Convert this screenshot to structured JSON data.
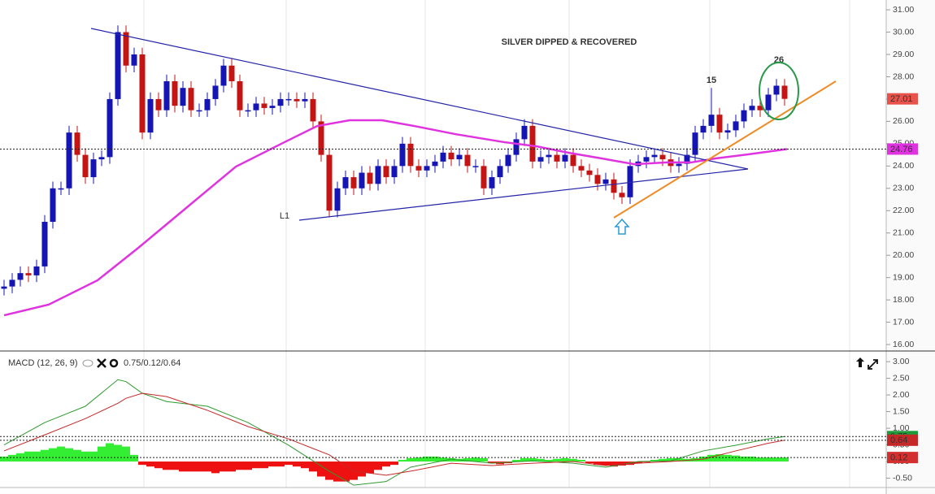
{
  "chart_data": [
    {
      "type": "candlestick",
      "title": "SILVER DIPPED & RECOVERED",
      "annotations": [
        {
          "text": "15"
        },
        {
          "text": "26"
        },
        {
          "text": "L1"
        }
      ],
      "candles": {
        "open": [
          18.5,
          18.6,
          18.9,
          19.2,
          19.1,
          19.5,
          21.5,
          23.0,
          23.0,
          25.5,
          24.5,
          23.5,
          24.3,
          24.4,
          27.0,
          30.0,
          28.5,
          29.0,
          25.5,
          27.0,
          26.5,
          27.8,
          26.7,
          27.5,
          26.5,
          26.5,
          27.0,
          27.6,
          28.5,
          27.8,
          26.5,
          26.5,
          26.8,
          26.6,
          26.7,
          27.0,
          27.0,
          26.9,
          27.0,
          26.0,
          24.5,
          22.0,
          23.0,
          23.5,
          23.0,
          23.7,
          23.2,
          24.0,
          23.5,
          24.0,
          25.0,
          24.0,
          23.8,
          24.0,
          24.2,
          24.6,
          24.3,
          24.5,
          24.0,
          24.0,
          23.0,
          23.5,
          24.0,
          24.5,
          25.2,
          25.8,
          24.2,
          24.4,
          24.5,
          24.2,
          24.5,
          24.0,
          23.8,
          23.6,
          23.2,
          23.4,
          22.8,
          22.6,
          24.0,
          24.2,
          24.4,
          24.5,
          24.3,
          24.0,
          24.1,
          24.5,
          25.5,
          25.8,
          26.3,
          25.5,
          25.6,
          26.0,
          26.5,
          26.7,
          26.5,
          27.2,
          27.6
        ],
        "high": [
          18.9,
          19.2,
          19.5,
          19.5,
          19.8,
          21.8,
          23.3,
          23.3,
          25.8,
          25.8,
          24.8,
          24.6,
          24.7,
          27.3,
          30.3,
          30.3,
          29.3,
          29.3,
          27.3,
          27.3,
          28.1,
          28.1,
          27.8,
          27.8,
          26.8,
          27.3,
          27.9,
          28.8,
          28.8,
          28.1,
          26.8,
          27.1,
          27.1,
          27.0,
          27.3,
          27.3,
          27.3,
          27.3,
          27.3,
          26.3,
          24.8,
          23.3,
          23.8,
          23.8,
          24.0,
          24.0,
          24.3,
          24.3,
          24.3,
          25.3,
          25.3,
          24.3,
          24.3,
          24.5,
          24.9,
          24.9,
          24.8,
          24.8,
          24.3,
          24.3,
          23.8,
          24.3,
          24.8,
          25.5,
          26.1,
          26.1,
          24.7,
          24.8,
          24.8,
          24.8,
          24.8,
          24.3,
          24.1,
          23.9,
          23.7,
          23.7,
          23.1,
          24.3,
          24.5,
          24.7,
          24.8,
          24.8,
          24.6,
          24.4,
          24.8,
          25.8,
          26.1,
          27.5,
          26.6,
          25.9,
          26.3,
          26.8,
          27.0,
          27.0,
          27.5,
          27.9,
          27.9
        ],
        "low": [
          18.2,
          18.3,
          18.6,
          18.8,
          18.8,
          19.2,
          21.2,
          22.7,
          22.7,
          24.2,
          23.2,
          23.2,
          24.0,
          24.1,
          26.7,
          28.2,
          28.2,
          25.2,
          25.2,
          26.2,
          26.2,
          26.4,
          26.4,
          26.2,
          26.2,
          26.2,
          26.7,
          27.3,
          27.5,
          26.2,
          26.2,
          26.2,
          26.3,
          26.3,
          26.4,
          26.7,
          26.6,
          26.6,
          25.7,
          24.2,
          21.7,
          21.7,
          22.7,
          22.7,
          22.7,
          22.9,
          22.9,
          23.2,
          23.2,
          23.7,
          23.7,
          23.5,
          23.5,
          23.7,
          23.9,
          24.0,
          24.0,
          23.7,
          23.7,
          22.7,
          22.7,
          23.2,
          23.7,
          24.2,
          24.9,
          23.9,
          23.9,
          24.1,
          23.9,
          23.9,
          23.7,
          23.5,
          23.3,
          22.9,
          22.9,
          22.5,
          22.3,
          22.3,
          23.7,
          23.9,
          24.1,
          24.0,
          23.7,
          23.7,
          23.8,
          24.2,
          25.2,
          25.5,
          25.2,
          25.2,
          25.3,
          25.7,
          26.2,
          26.2,
          26.2,
          26.9,
          26.7
        ],
        "close": [
          18.6,
          18.9,
          19.2,
          19.1,
          19.5,
          21.5,
          23.0,
          23.0,
          25.5,
          24.5,
          23.5,
          24.3,
          24.4,
          27.0,
          30.0,
          28.5,
          29.0,
          25.5,
          27.0,
          26.5,
          27.8,
          26.7,
          27.5,
          26.5,
          26.5,
          27.0,
          27.6,
          28.5,
          27.8,
          26.5,
          26.5,
          26.8,
          26.6,
          26.7,
          27.0,
          27.0,
          26.9,
          27.0,
          26.0,
          24.5,
          22.0,
          23.0,
          23.5,
          23.0,
          23.7,
          23.2,
          24.0,
          23.5,
          24.0,
          25.0,
          24.0,
          23.8,
          24.0,
          24.2,
          24.6,
          24.3,
          24.5,
          24.0,
          24.0,
          23.0,
          23.5,
          24.0,
          24.5,
          25.2,
          25.8,
          24.2,
          24.4,
          24.5,
          24.2,
          24.5,
          24.0,
          23.8,
          23.6,
          23.2,
          23.4,
          22.8,
          22.6,
          24.0,
          24.2,
          24.4,
          24.5,
          24.3,
          24.0,
          24.1,
          24.5,
          25.5,
          25.8,
          26.3,
          25.5,
          25.6,
          26.0,
          26.5,
          26.7,
          26.5,
          27.2,
          27.6,
          27.01
        ],
        "up_color": "#1515b5",
        "down_color": "#c41414"
      },
      "ma": {
        "color": "#e033e0",
        "x": [
          0,
          5.5,
          11.5,
          16.5,
          22.5,
          28.5,
          34.5,
          38.5,
          42.5,
          46.5,
          50.5,
          55.5,
          61.5,
          65.5,
          69.5,
          73.5,
          77.5,
          81.5,
          84.5,
          87.5,
          91.5,
          96.3
        ],
        "values": [
          17.31,
          17.79,
          18.88,
          20.33,
          22.15,
          23.97,
          25.07,
          25.79,
          26.05,
          26.05,
          25.79,
          25.43,
          25.07,
          24.88,
          24.59,
          24.34,
          24.08,
          24.16,
          24.16,
          24.34,
          24.52,
          24.76
        ]
      },
      "ylim": [
        15.71,
        31.44
      ],
      "yticks": [
        {
          "value": 16,
          "label": "16.00"
        },
        {
          "value": 17,
          "label": "17.00"
        },
        {
          "value": 18,
          "label": "18.00"
        },
        {
          "value": 19,
          "label": "19.00"
        },
        {
          "value": 20,
          "label": "20.00"
        },
        {
          "value": 21,
          "label": "21.00"
        },
        {
          "value": 22,
          "label": "22.00"
        },
        {
          "value": 23,
          "label": "23.00"
        },
        {
          "value": 24,
          "label": "24.00"
        },
        {
          "value": 25,
          "label": "25.00"
        },
        {
          "value": 26,
          "label": "26.00"
        },
        {
          "value": 27,
          "label": "27.00"
        },
        {
          "value": 28,
          "label": "28.00"
        },
        {
          "value": 29,
          "label": "29.00"
        },
        {
          "value": 30,
          "label": "30.00"
        },
        {
          "value": 31,
          "label": "31.00"
        }
      ]
    },
    {
      "type": "macd",
      "title": "MACD (12, 26, 9)",
      "readout": "0.75/0.12/0.64",
      "x": [
        0,
        5,
        10,
        14,
        15,
        17,
        20,
        25,
        30,
        35,
        40,
        43,
        47,
        50,
        55,
        60,
        65,
        70,
        74,
        78,
        82,
        86,
        90,
        94,
        96
      ],
      "macd": {
        "color": "#2e9a2e",
        "values": [
          0.5,
          1.17,
          1.66,
          2.46,
          2.4,
          2.05,
          1.8,
          1.66,
          1.17,
          0.49,
          -0.29,
          -0.71,
          -0.6,
          -0.17,
          0.07,
          -0.05,
          0.02,
          -0.05,
          -0.17,
          0,
          0.02,
          0.32,
          0.49,
          0.68,
          0.75
        ]
      },
      "signal": {
        "color": "#c62828",
        "values": [
          0.32,
          0.8,
          1.29,
          1.75,
          1.9,
          2.05,
          1.95,
          1.54,
          1.05,
          0.68,
          0.2,
          -0.29,
          -0.41,
          -0.29,
          -0.05,
          -0.12,
          -0.05,
          0,
          -0.12,
          -0.05,
          0,
          0.07,
          0.32,
          0.55,
          0.64
        ]
      },
      "histogram": {
        "pos_color": "#33ee33",
        "neg_color": "#ee1111",
        "values": [
          0.15,
          0.2,
          0.25,
          0.3,
          0.3,
          0.35,
          0.4,
          0.45,
          0.4,
          0.35,
          0.3,
          0.3,
          0.45,
          0.55,
          0.5,
          0.45,
          0.2,
          -0.1,
          -0.15,
          -0.2,
          -0.25,
          -0.25,
          -0.3,
          -0.3,
          -0.3,
          -0.3,
          -0.35,
          -0.3,
          -0.3,
          -0.25,
          -0.25,
          -0.2,
          -0.2,
          -0.15,
          -0.15,
          -0.1,
          -0.15,
          -0.2,
          -0.3,
          -0.45,
          -0.55,
          -0.6,
          -0.6,
          -0.55,
          -0.45,
          -0.35,
          -0.25,
          -0.15,
          -0.1,
          0.05,
          0.1,
          0.12,
          0.15,
          0.15,
          0.12,
          0.1,
          0.08,
          0.1,
          0.12,
          0.1,
          -0.05,
          -0.08,
          -0.05,
          0.05,
          0.1,
          0.1,
          0.08,
          0.05,
          0.08,
          0.1,
          0.08,
          0.05,
          -0.05,
          -0.1,
          -0.12,
          -0.15,
          -0.12,
          -0.1,
          -0.05,
          -0.02,
          0.05,
          0.08,
          0.1,
          0.1,
          0.08,
          0.1,
          0.15,
          0.2,
          0.22,
          0.2,
          0.18,
          0.15,
          0.15,
          0.12,
          0.12,
          0.12,
          0.12
        ]
      },
      "ylim": [
        -0.78,
        3.32
      ],
      "yticks": [
        {
          "value": -0.5,
          "label": "-0.50"
        },
        {
          "value": 0,
          "label": "0.00"
        },
        {
          "value": 0.5,
          "label": "0.50"
        },
        {
          "value": 1,
          "label": "1.00"
        },
        {
          "value": 1.5,
          "label": "1.50"
        },
        {
          "value": 2,
          "label": "2.00"
        },
        {
          "value": 2.5,
          "label": "2.50"
        },
        {
          "value": 3,
          "label": "3.00"
        }
      ]
    }
  ]
}
